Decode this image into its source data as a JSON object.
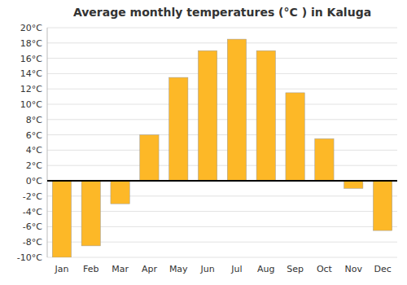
{
  "chart_data": {
    "type": "bar",
    "title": "Average monthly temperatures (°C ) in Kaluga",
    "categories": [
      "Jan",
      "Feb",
      "Mar",
      "Apr",
      "May",
      "Jun",
      "Jul",
      "Aug",
      "Sep",
      "Oct",
      "Nov",
      "Dec"
    ],
    "values": [
      -10,
      -8.5,
      -3,
      6,
      13.5,
      17,
      18.5,
      17,
      11.5,
      5.5,
      -1,
      -6.5
    ],
    "color": "#FDB827",
    "ylim": [
      -10,
      20
    ],
    "yticks": [
      {
        "value": -10,
        "label": "-10°C"
      },
      {
        "value": -8,
        "label": "-8°C"
      },
      {
        "value": -6,
        "label": "-6°C"
      },
      {
        "value": -4,
        "label": "-4°C"
      },
      {
        "value": -2,
        "label": "-2°C"
      },
      {
        "value": 0,
        "label": "0°C"
      },
      {
        "value": 2,
        "label": "2°C"
      },
      {
        "value": 4,
        "label": "4°C"
      },
      {
        "value": 6,
        "label": "6°C"
      },
      {
        "value": 8,
        "label": "8°C"
      },
      {
        "value": 10,
        "label": "10°C"
      },
      {
        "value": 12,
        "label": "12°C"
      },
      {
        "value": 14,
        "label": "14°C"
      },
      {
        "value": 16,
        "label": "16°C"
      },
      {
        "value": 18,
        "label": "18°C"
      },
      {
        "value": 20,
        "label": "20°C"
      }
    ],
    "grid": true
  }
}
